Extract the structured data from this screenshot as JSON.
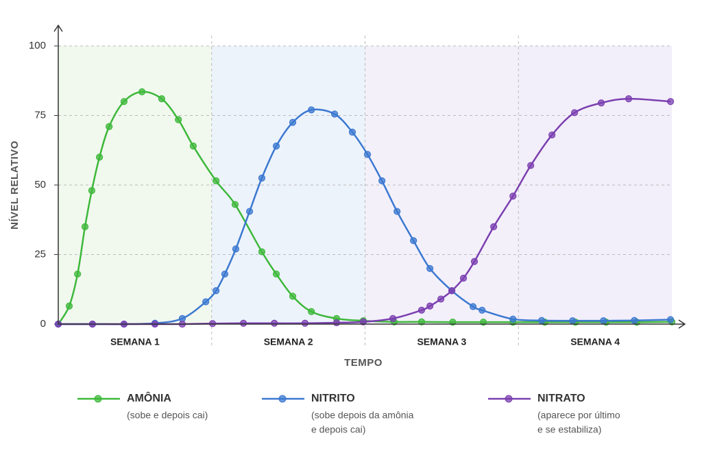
{
  "chart_data": {
    "type": "line",
    "y_axis_label": "NÍVEL RELATIVO",
    "x_axis_label": "TEMPO",
    "weeks": [
      "SEMANA 1",
      "SEMANA 2",
      "SEMANA 3",
      "SEMANA 4"
    ],
    "week_colors": [
      "#f1f8ee",
      "#edf3fb",
      "#f3f0fa",
      "#f2eefa"
    ],
    "xlim": [
      0,
      28
    ],
    "ylim": [
      0,
      100
    ],
    "yticks": [
      0,
      25,
      50,
      75,
      100
    ],
    "grid": true,
    "series": [
      {
        "name": "AMÔNIA",
        "note": [
          "(sobe e depois cai)"
        ],
        "color": "#3db83a",
        "x": [
          0,
          0.5,
          0.88,
          1.22,
          1.53,
          1.88,
          2.32,
          3.0,
          3.82,
          4.72,
          5.48,
          6.16,
          7.2,
          8.07,
          9.29,
          9.95,
          10.7,
          11.55,
          12.7,
          13.92,
          15.33,
          16.58,
          18.0,
          19.4,
          20.75,
          22.2,
          23.6,
          25.0,
          26.4,
          28.0
        ],
        "values": [
          0,
          6.5,
          18,
          35,
          48,
          60,
          71,
          80,
          83.5,
          81,
          73.5,
          64,
          51.5,
          43,
          26,
          18,
          10,
          4.5,
          2,
          1.2,
          0.8,
          0.8,
          0.7,
          0.7,
          0.7,
          0.7,
          0.7,
          0.7,
          0.7,
          0.8
        ]
      },
      {
        "name": "NITRITO",
        "note": [
          "(sobe depois da amônia",
          "e depois cai)"
        ],
        "color": "#3b78d0",
        "x": [
          0,
          1.56,
          3.0,
          4.41,
          5.66,
          6.73,
          7.2,
          7.6,
          8.1,
          8.73,
          9.29,
          9.95,
          10.7,
          11.55,
          12.61,
          13.42,
          14.11,
          14.77,
          15.46,
          16.21,
          16.96,
          17.96,
          18.93,
          19.34,
          20.75,
          22.06,
          23.47,
          24.88,
          26.29,
          27.94
        ],
        "values": [
          0,
          0,
          0,
          0.3,
          2,
          8,
          12,
          18,
          27,
          40.5,
          52.5,
          64,
          72.5,
          77,
          75.5,
          69,
          61,
          51.5,
          40.5,
          30,
          20,
          12,
          6.3,
          5,
          1.8,
          1.3,
          1.2,
          1.2,
          1.3,
          1.6
        ]
      },
      {
        "name": "NITRATO",
        "note": [
          "(aparece por último",
          "e se estabiliza)"
        ],
        "color": "#7b3fb0",
        "x": [
          0,
          1.56,
          3.0,
          4.41,
          5.66,
          7.04,
          8.45,
          9.86,
          11.26,
          12.7,
          13.92,
          15.27,
          16.58,
          16.96,
          17.46,
          17.96,
          18.49,
          18.99,
          19.87,
          20.75,
          21.56,
          22.53,
          23.56,
          24.78,
          26.03,
          27.94
        ],
        "values": [
          0,
          0,
          0,
          0,
          0,
          0.2,
          0.3,
          0.3,
          0.3,
          0.5,
          0.8,
          2,
          5,
          6.5,
          9,
          12,
          16.5,
          22.5,
          35,
          46,
          57,
          68,
          76,
          79.5,
          81,
          80
        ]
      }
    ]
  }
}
